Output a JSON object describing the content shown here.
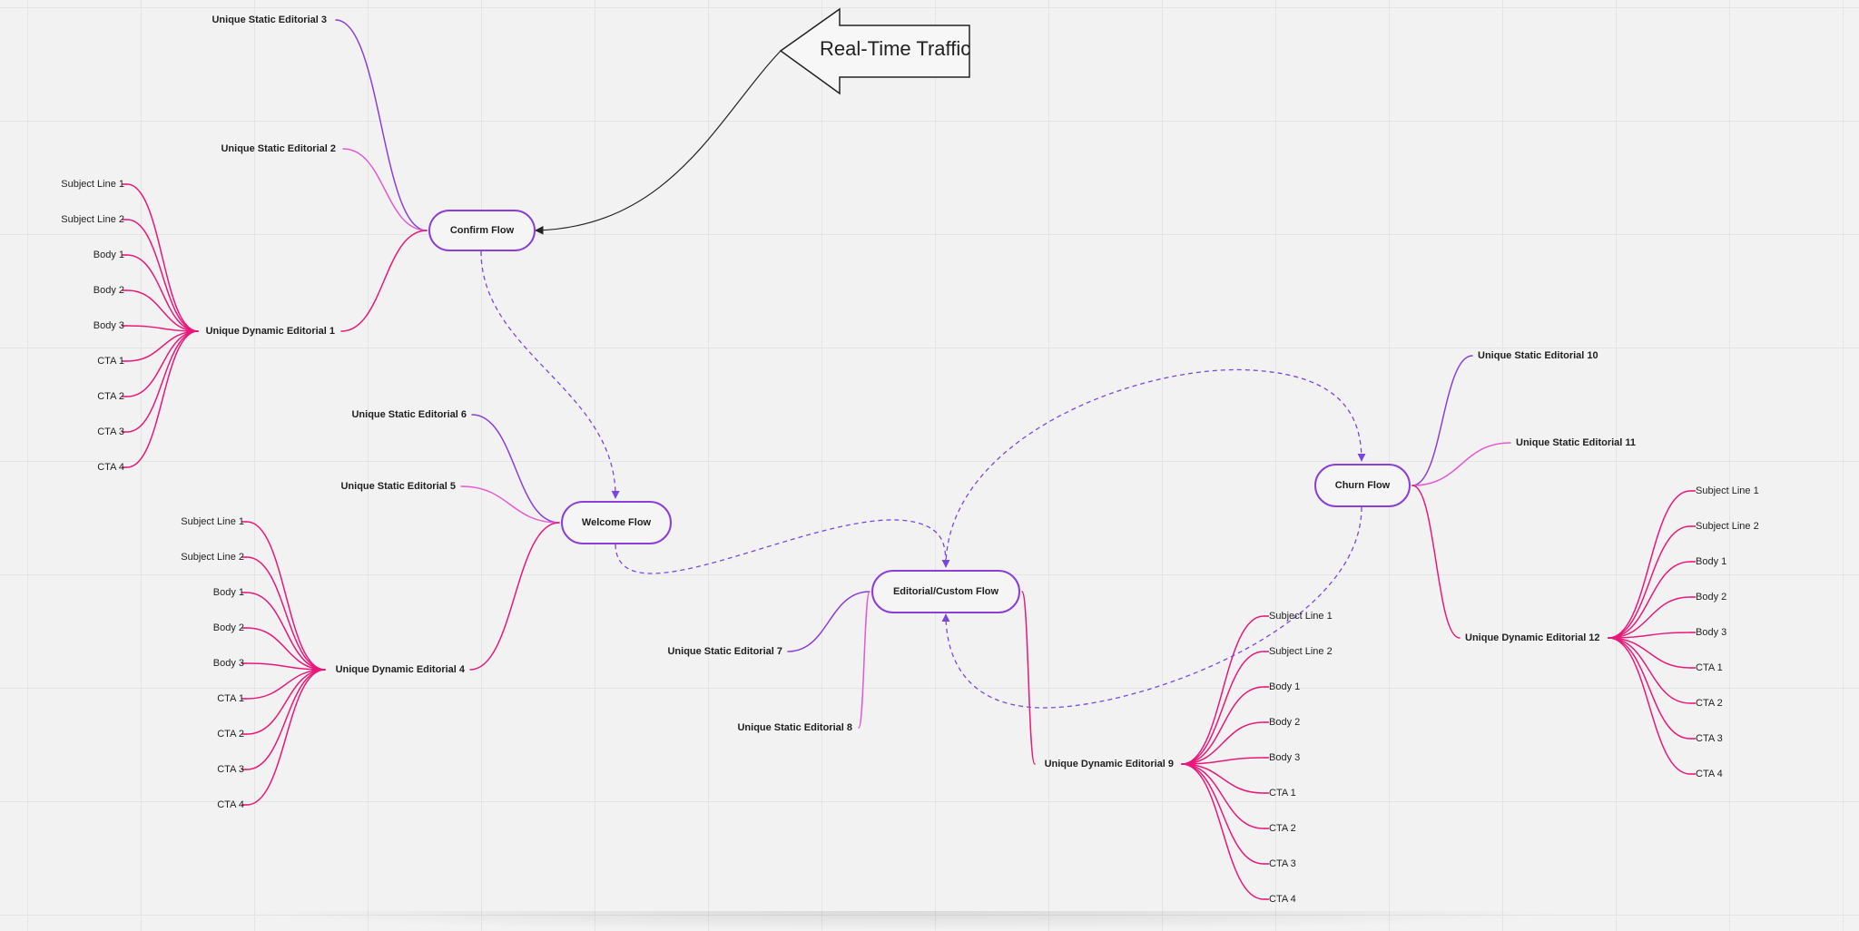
{
  "flows": {
    "confirm": "Confirm Flow",
    "welcome": "Welcome Flow",
    "editorial": "Editorial/Custom Flow",
    "churn": "Churn Flow"
  },
  "callout": {
    "text": "Real-Time Traffic"
  },
  "editorials": {
    "s3": "Unique Static Editorial 3",
    "s2": "Unique Static Editorial 2",
    "d1": "Unique Dynamic Editorial 1",
    "s6": "Unique Static Editorial 6",
    "s5": "Unique Static Editorial 5",
    "d4": "Unique Dynamic Editorial 4",
    "s7": "Unique Static Editorial 7",
    "s8": "Unique Static Editorial 8",
    "d9": "Unique Dynamic Editorial 9",
    "s10": "Unique Static Editorial 10",
    "s11": "Unique Static Editorial 11",
    "d12": "Unique Dynamic Editorial 12"
  },
  "components": [
    "Subject Line 1",
    "Subject Line 2",
    "Body 1",
    "Body 2",
    "Body 3",
    "CTA 1",
    "CTA 2",
    "CTA 3",
    "CTA 4"
  ],
  "colors": {
    "static_purple": "#8b3fd6",
    "static_pink": "#e45ad0",
    "dynamic_magenta": "#e8197a",
    "dashed": "#7b46e0",
    "arrow": "#222222"
  }
}
